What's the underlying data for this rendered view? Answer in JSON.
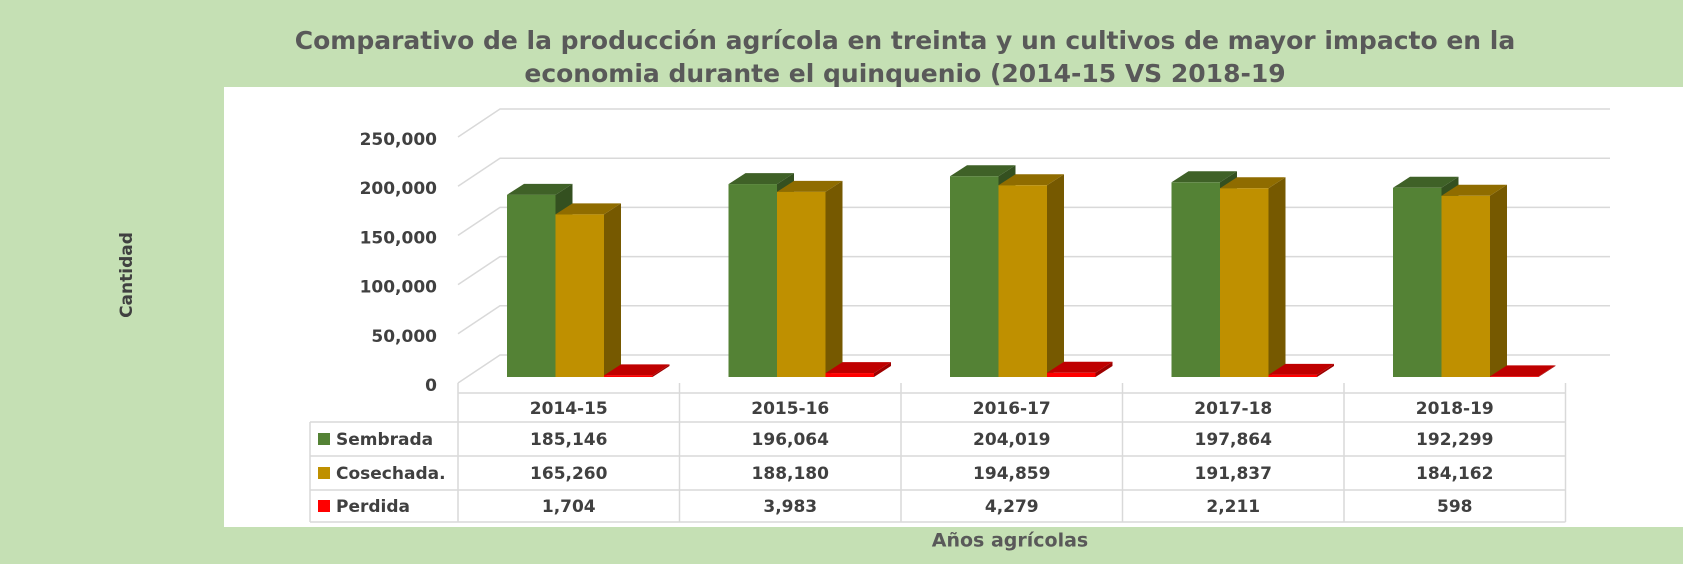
{
  "chart_data": {
    "type": "bar3d",
    "title": "Comparativo de la producción agrícola en treinta y un cultivos de mayor impacto en la economia durante el quinquenio (2014-15 VS 2018-19",
    "y_label": "Cantidad",
    "x_label": "Años agrícolas",
    "categories": [
      "2014-15",
      "2015-16",
      "2016-17",
      "2017-18",
      "2018-19"
    ],
    "series": [
      {
        "name": "Sembrada",
        "color": "#548235",
        "values": [
          185146,
          196064,
          204019,
          197864,
          192299
        ],
        "value_labels": [
          "185,146",
          "196,064",
          "204,019",
          "197,864",
          "192,299"
        ]
      },
      {
        "name": "Cosechada.",
        "color": "#bf9000",
        "values": [
          165260,
          188180,
          194859,
          191837,
          184162
        ],
        "value_labels": [
          "165,260",
          "188,180",
          "194,859",
          "191,837",
          "184,162"
        ]
      },
      {
        "name": "Perdida",
        "color": "#ff0000",
        "values": [
          1704,
          3983,
          4279,
          2211,
          598
        ],
        "value_labels": [
          "1,704",
          "3,983",
          "4,279",
          "2,211",
          "598"
        ]
      }
    ],
    "ylim": [
      0,
      250000
    ],
    "yticks": [
      0,
      {
        "value": 50000,
        "label": "50,000"
      },
      {
        "value": 100000,
        "label": "100,000"
      },
      {
        "value": 150000,
        "label": "150,000"
      },
      {
        "value": 200000,
        "label": "200,000"
      },
      {
        "value": 250000,
        "label": "250,000"
      }
    ],
    "grid": true
  }
}
